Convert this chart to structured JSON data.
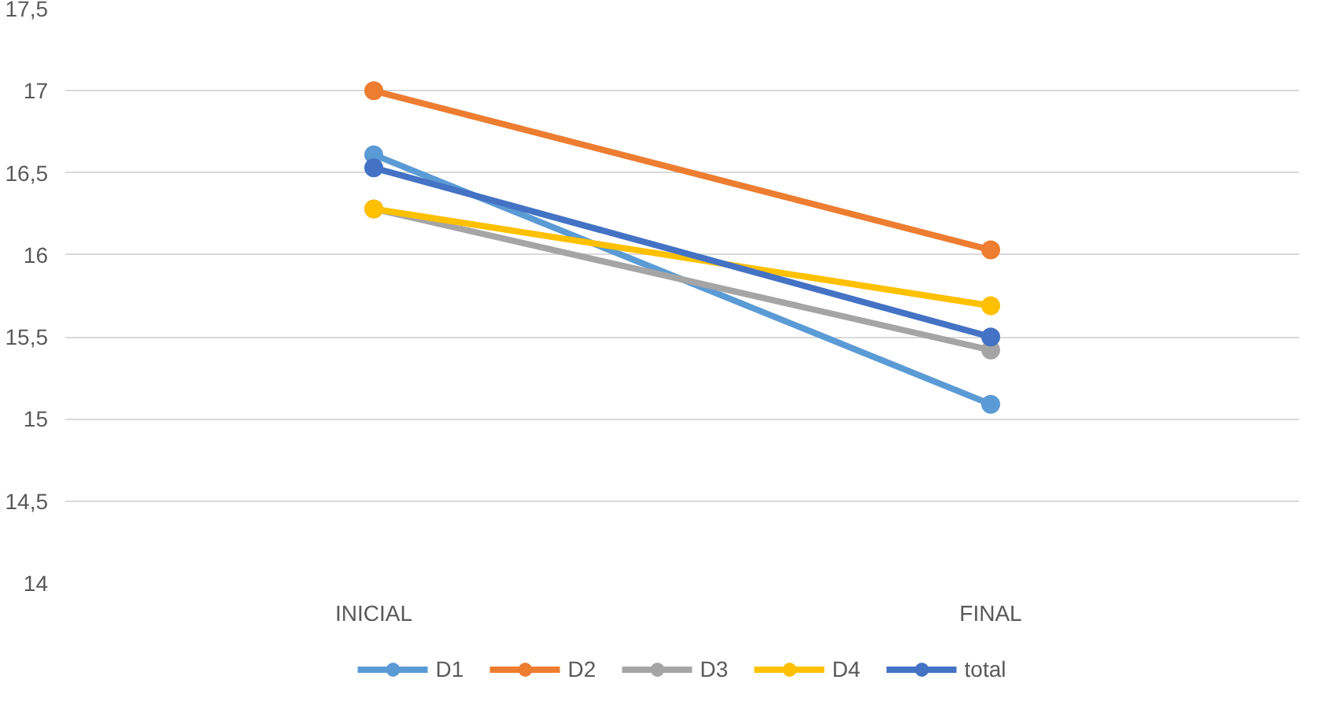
{
  "chart_data": {
    "type": "line",
    "categories": [
      "INICIAL",
      "FINAL"
    ],
    "series": [
      {
        "name": "D1",
        "color": "#5b9bd5",
        "values": [
          16.61,
          15.09
        ]
      },
      {
        "name": "D2",
        "color": "#ed7d31",
        "values": [
          17.0,
          16.03
        ]
      },
      {
        "name": "D3",
        "color": "#a5a5a5",
        "values": [
          16.28,
          15.42
        ]
      },
      {
        "name": "D4",
        "color": "#ffc000",
        "values": [
          16.28,
          15.69
        ]
      },
      {
        "name": "total",
        "color": "#4472c4",
        "values": [
          16.53,
          15.5
        ]
      }
    ],
    "ylim": [
      14,
      17.5
    ],
    "yticks": [
      {
        "value": 14,
        "label": "14"
      },
      {
        "value": 14.5,
        "label": "14,5"
      },
      {
        "value": 15,
        "label": "15"
      },
      {
        "value": 15.5,
        "label": "15,5"
      },
      {
        "value": 16,
        "label": "16"
      },
      {
        "value": 16.5,
        "label": "16,5"
      },
      {
        "value": 17,
        "label": "17"
      },
      {
        "value": 17.5,
        "label": "17,5"
      }
    ],
    "grid": "y",
    "legend": "bottom",
    "marker": "circle",
    "line_style": "solid"
  }
}
